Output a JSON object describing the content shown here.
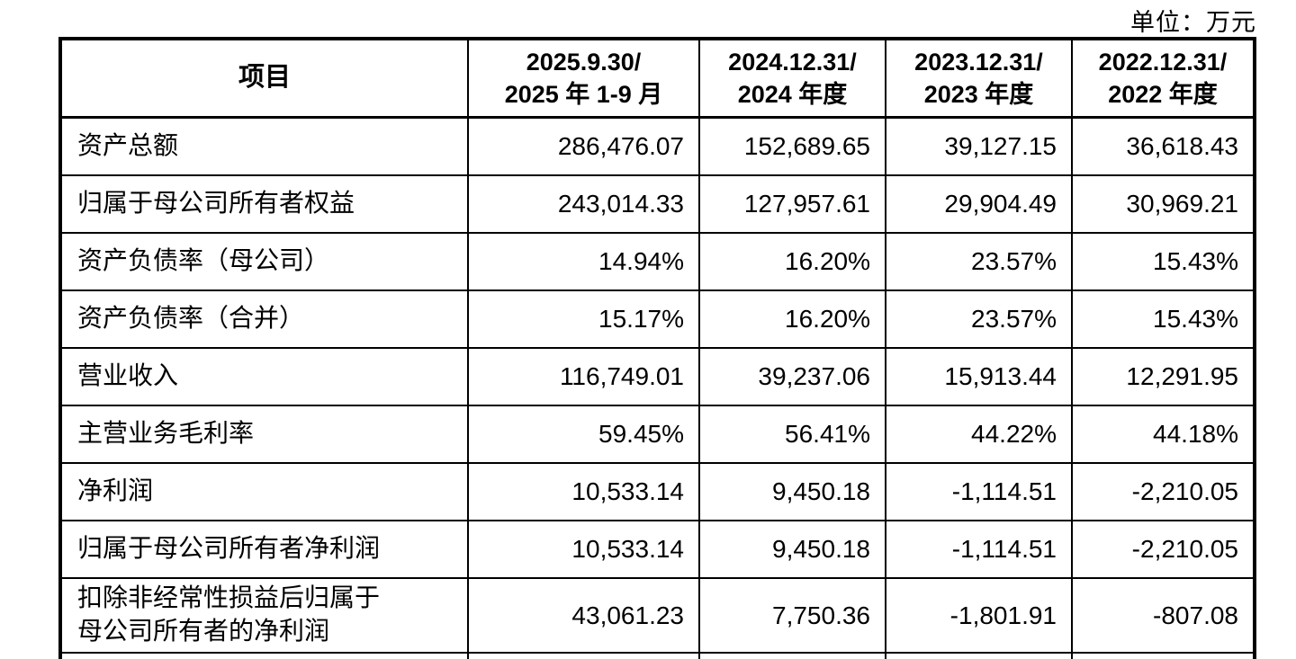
{
  "unit_label": "单位：万元",
  "colors": {
    "border": "#000000",
    "text": "#000000",
    "background": "#ffffff"
  },
  "table": {
    "header": {
      "item": "项目",
      "periods": [
        {
          "line1": "2025.9.30/",
          "line2": "2025 年 1-9 月"
        },
        {
          "line1": "2024.12.31/",
          "line2": "2024 年度"
        },
        {
          "line1": "2023.12.31/",
          "line2": "2023 年度"
        },
        {
          "line1": "2022.12.31/",
          "line2": "2022 年度"
        }
      ]
    },
    "rows": [
      {
        "label": "资产总额",
        "values": [
          "286,476.07",
          "152,689.65",
          "39,127.15",
          "36,618.43"
        ]
      },
      {
        "label": "归属于母公司所有者权益",
        "values": [
          "243,014.33",
          "127,957.61",
          "29,904.49",
          "30,969.21"
        ]
      },
      {
        "label": "资产负债率（母公司）",
        "values": [
          "14.94%",
          "16.20%",
          "23.57%",
          "15.43%"
        ]
      },
      {
        "label": "资产负债率（合并）",
        "values": [
          "15.17%",
          "16.20%",
          "23.57%",
          "15.43%"
        ]
      },
      {
        "label": "营业收入",
        "values": [
          "116,749.01",
          "39,237.06",
          "15,913.44",
          "12,291.95"
        ]
      },
      {
        "label": "主营业务毛利率",
        "values": [
          "59.45%",
          "56.41%",
          "44.22%",
          "44.18%"
        ]
      },
      {
        "label": "净利润",
        "values": [
          "10,533.14",
          "9,450.18",
          "-1,114.51",
          "-2,210.05"
        ]
      },
      {
        "label": "归属于母公司所有者净利润",
        "values": [
          "10,533.14",
          "9,450.18",
          "-1,114.51",
          "-2,210.05"
        ]
      },
      {
        "label": "扣除非经常性损益后归属于\n母公司所有者的净利润",
        "values": [
          "43,061.23",
          "7,750.36",
          "-1,801.91",
          "-807.08"
        ]
      }
    ]
  }
}
